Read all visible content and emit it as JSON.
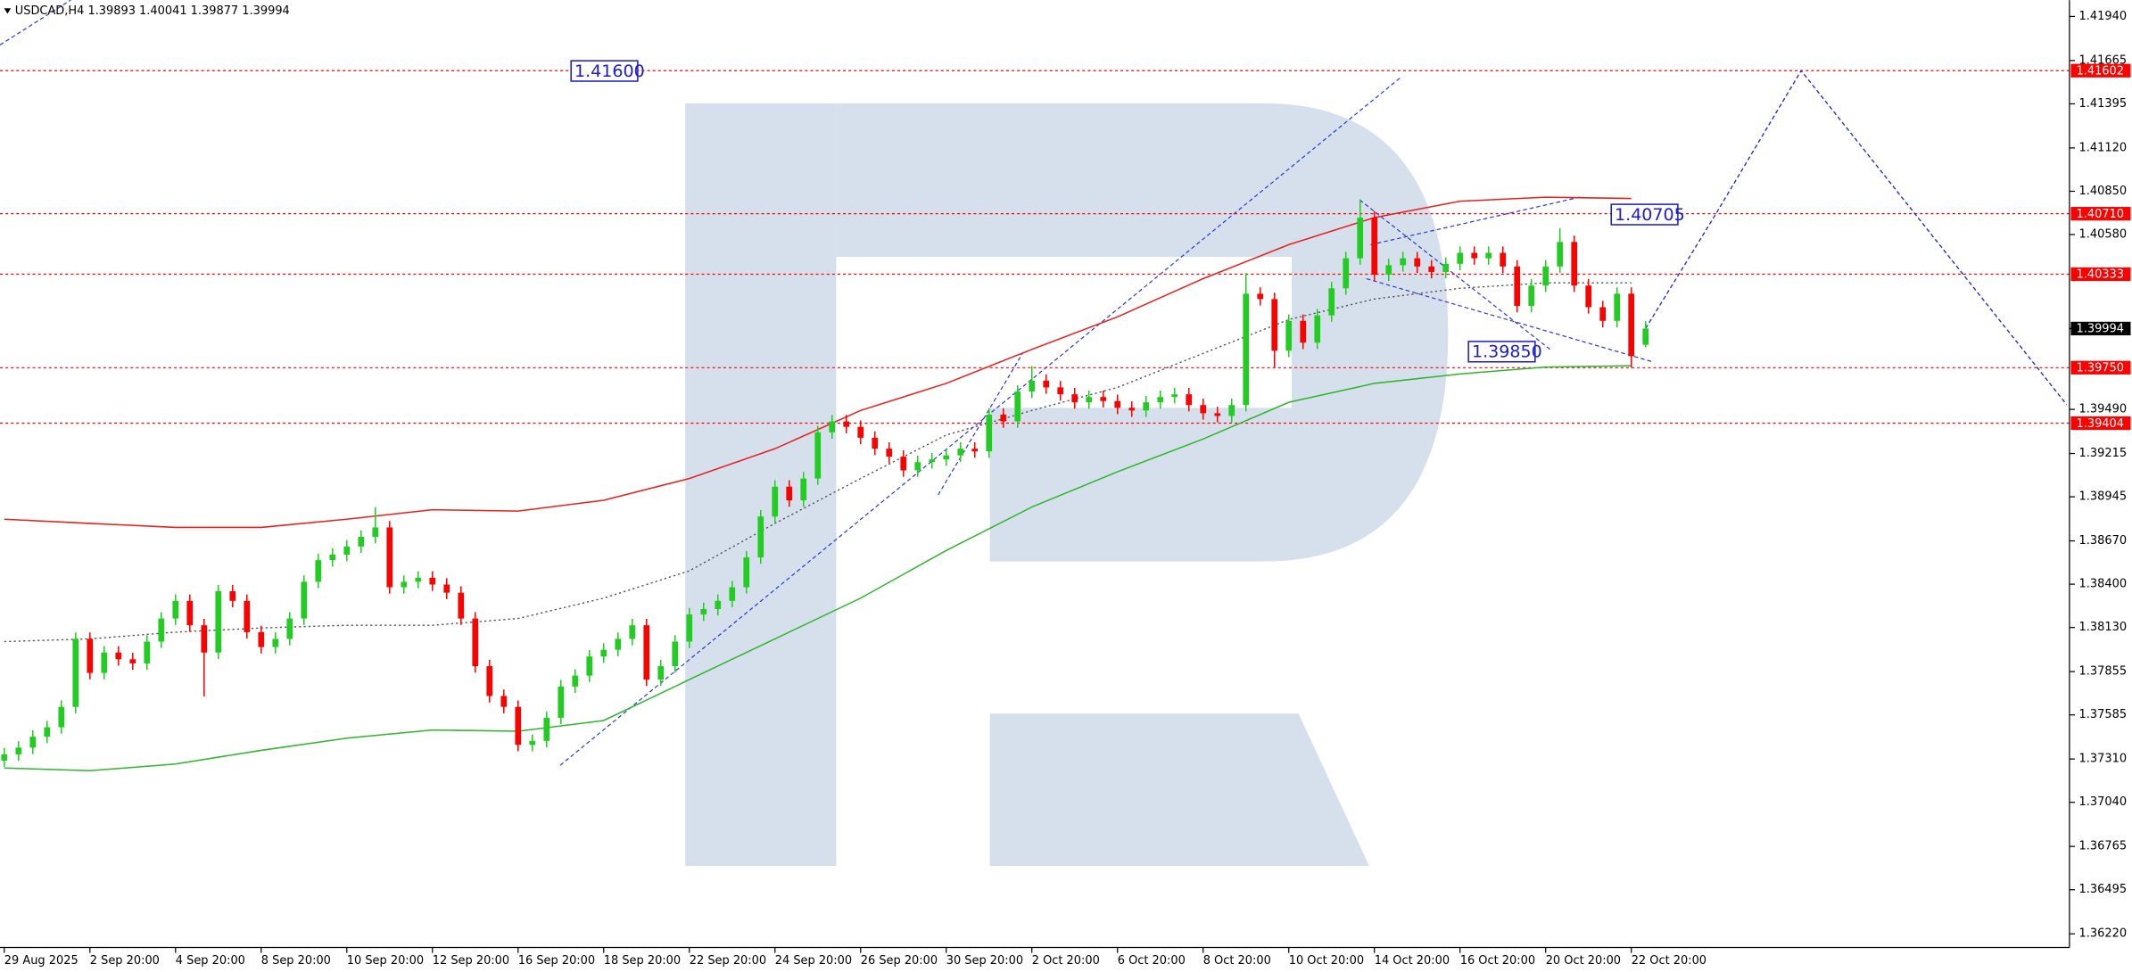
{
  "chart_data": {
    "type": "candlestick",
    "title": "USDCAD,H4  1.39893 1.40041 1.39877 1.39994",
    "up_color": "#22cc22",
    "down_color": "#ff0000",
    "grid": false,
    "xlim": [
      -0.3,
      144.7
    ],
    "ylim": [
      1.36135,
      1.42042
    ],
    "yticks": [
      {
        "value": 1.4194,
        "label": "1.41940"
      },
      {
        "value": 1.41665,
        "label": "1.41665"
      },
      {
        "value": 1.41395,
        "label": "1.41395"
      },
      {
        "value": 1.4112,
        "label": "1.41120"
      },
      {
        "value": 1.4085,
        "label": "1.40850"
      },
      {
        "value": 1.4058,
        "label": "1.40580"
      },
      {
        "value": 1.3949,
        "label": "1.39490"
      },
      {
        "value": 1.39215,
        "label": "1.39215"
      },
      {
        "value": 1.38945,
        "label": "1.38945"
      },
      {
        "value": 1.3867,
        "label": "1.38670"
      },
      {
        "value": 1.384,
        "label": "1.38400"
      },
      {
        "value": 1.3813,
        "label": "1.38130"
      },
      {
        "value": 1.37855,
        "label": "1.37855"
      },
      {
        "value": 1.37585,
        "label": "1.37585"
      },
      {
        "value": 1.3731,
        "label": "1.37310"
      },
      {
        "value": 1.3704,
        "label": "1.37040"
      },
      {
        "value": 1.36765,
        "label": "1.36765"
      },
      {
        "value": 1.36495,
        "label": "1.36495"
      },
      {
        "value": 1.3622,
        "label": "1.36220"
      }
    ],
    "categories": [
      "29 Aug 2025",
      null,
      null,
      null,
      null,
      null,
      "2 Sep 20:00",
      null,
      null,
      null,
      null,
      null,
      "4 Sep 20:00",
      null,
      null,
      null,
      null,
      null,
      "8 Sep 20:00",
      null,
      null,
      null,
      null,
      null,
      "10 Sep 20:00",
      null,
      null,
      null,
      null,
      null,
      "12 Sep 20:00",
      null,
      null,
      null,
      null,
      null,
      "16 Sep 20:00",
      null,
      null,
      null,
      null,
      null,
      "18 Sep 20:00",
      null,
      null,
      null,
      null,
      null,
      "22 Sep 20:00",
      null,
      null,
      null,
      null,
      null,
      "24 Sep 20:00",
      null,
      null,
      null,
      null,
      null,
      "26 Sep 20:00",
      null,
      null,
      null,
      null,
      null,
      "30 Sep 20:00",
      null,
      null,
      null,
      null,
      null,
      "2 Oct 20:00",
      null,
      null,
      null,
      null,
      null,
      "6 Oct 20:00",
      null,
      null,
      null,
      null,
      null,
      "8 Oct 20:00",
      null,
      null,
      null,
      null,
      null,
      "10 Oct 20:00",
      null,
      null,
      null,
      null,
      null,
      "14 Oct 20:00",
      null,
      null,
      null,
      null,
      null,
      "16 Oct 20:00",
      null,
      null,
      null,
      null,
      null,
      "20 Oct 20:00",
      null,
      null,
      null,
      null,
      null,
      "22 Oct 20:00",
      null
    ],
    "candles": [
      [
        1.373,
        1.37379,
        1.3726,
        1.37339
      ],
      [
        1.37339,
        1.37421,
        1.37299,
        1.37381
      ],
      [
        1.37381,
        1.37489,
        1.37341,
        1.37449
      ],
      [
        1.37449,
        1.37548,
        1.37409,
        1.37508
      ],
      [
        1.37508,
        1.37675,
        1.37468,
        1.37635
      ],
      [
        1.37635,
        1.38099,
        1.37595,
        1.38059
      ],
      [
        1.38059,
        1.38099,
        1.37807,
        1.37847
      ],
      [
        1.37847,
        1.38014,
        1.37807,
        1.37974
      ],
      [
        1.37974,
        1.38014,
        1.37892,
        1.37932
      ],
      [
        1.37932,
        1.37972,
        1.37866,
        1.37906
      ],
      [
        1.37906,
        1.38082,
        1.37866,
        1.38042
      ],
      [
        1.38042,
        1.38226,
        1.38002,
        1.38186
      ],
      [
        1.38186,
        1.38336,
        1.38146,
        1.38296
      ],
      [
        1.38296,
        1.38336,
        1.38104,
        1.38144
      ],
      [
        1.38144,
        1.38184,
        1.377,
        1.37974
      ],
      [
        1.37974,
        1.38396,
        1.37934,
        1.38356
      ],
      [
        1.38356,
        1.38396,
        1.38256,
        1.38296
      ],
      [
        1.38296,
        1.38336,
        1.38061,
        1.38101
      ],
      [
        1.38101,
        1.38141,
        1.37968,
        1.38008
      ],
      [
        1.38008,
        1.38099,
        1.37968,
        1.38059
      ],
      [
        1.38059,
        1.38226,
        1.38019,
        1.38186
      ],
      [
        1.38186,
        1.38455,
        1.38146,
        1.38415
      ],
      [
        1.38415,
        1.3859,
        1.38375,
        1.3855
      ],
      [
        1.3855,
        1.38624,
        1.3851,
        1.38584
      ],
      [
        1.38584,
        1.38675,
        1.38544,
        1.38635
      ],
      [
        1.38635,
        1.38735,
        1.38595,
        1.38695
      ],
      [
        1.38695,
        1.3888,
        1.38655,
        1.38754
      ],
      [
        1.38754,
        1.38794,
        1.38341,
        1.38381
      ],
      [
        1.38381,
        1.38455,
        1.38341,
        1.38415
      ],
      [
        1.38415,
        1.3848,
        1.38375,
        1.3844
      ],
      [
        1.3844,
        1.3848,
        1.38358,
        1.38398
      ],
      [
        1.38398,
        1.38438,
        1.38307,
        1.38347
      ],
      [
        1.38347,
        1.38387,
        1.38146,
        1.38186
      ],
      [
        1.38186,
        1.38226,
        1.37849,
        1.37889
      ],
      [
        1.37889,
        1.37929,
        1.37663,
        1.37703
      ],
      [
        1.37703,
        1.37743,
        1.37595,
        1.37635
      ],
      [
        1.37635,
        1.37675,
        1.37358,
        1.37398
      ],
      [
        1.37398,
        1.37463,
        1.37358,
        1.37423
      ],
      [
        1.37423,
        1.37607,
        1.37383,
        1.37567
      ],
      [
        1.37567,
        1.37802,
        1.37527,
        1.37762
      ],
      [
        1.37762,
        1.3787,
        1.37722,
        1.3783
      ],
      [
        1.3783,
        1.37989,
        1.3779,
        1.37949
      ],
      [
        1.37949,
        1.38031,
        1.37909,
        1.37991
      ],
      [
        1.37991,
        1.38099,
        1.37951,
        1.38059
      ],
      [
        1.38059,
        1.38184,
        1.38019,
        1.38144
      ],
      [
        1.38144,
        1.38184,
        1.37765,
        1.37805
      ],
      [
        1.37805,
        1.37929,
        1.37765,
        1.37889
      ],
      [
        1.37889,
        1.38082,
        1.37849,
        1.38042
      ],
      [
        1.38042,
        1.38251,
        1.38002,
        1.38211
      ],
      [
        1.38211,
        1.38285,
        1.38171,
        1.38245
      ],
      [
        1.38245,
        1.38336,
        1.38205,
        1.38296
      ],
      [
        1.38296,
        1.38421,
        1.38256,
        1.38381
      ],
      [
        1.38381,
        1.38607,
        1.38341,
        1.38567
      ],
      [
        1.38567,
        1.38862,
        1.38527,
        1.38822
      ],
      [
        1.38822,
        1.39048,
        1.38782,
        1.39008
      ],
      [
        1.39008,
        1.39048,
        1.38883,
        1.38923
      ],
      [
        1.38923,
        1.39099,
        1.38883,
        1.39059
      ],
      [
        1.39059,
        1.39387,
        1.39019,
        1.39347
      ],
      [
        1.39347,
        1.39455,
        1.39307,
        1.39415
      ],
      [
        1.39415,
        1.39455,
        1.39341,
        1.39381
      ],
      [
        1.39381,
        1.39421,
        1.39273,
        1.39313
      ],
      [
        1.39313,
        1.39353,
        1.39205,
        1.39245
      ],
      [
        1.39245,
        1.39285,
        1.39155,
        1.39195
      ],
      [
        1.39195,
        1.39235,
        1.3907,
        1.3911
      ],
      [
        1.3911,
        1.39201,
        1.3907,
        1.39161
      ],
      [
        1.39161,
        1.39218,
        1.39121,
        1.39178
      ],
      [
        1.39178,
        1.39243,
        1.39138,
        1.39203
      ],
      [
        1.39203,
        1.39285,
        1.39163,
        1.39245
      ],
      [
        1.39245,
        1.39285,
        1.39188,
        1.39228
      ],
      [
        1.39228,
        1.39497,
        1.39188,
        1.39457
      ],
      [
        1.39457,
        1.39497,
        1.39375,
        1.39415
      ],
      [
        1.39415,
        1.39641,
        1.39375,
        1.39601
      ],
      [
        1.39601,
        1.3976,
        1.39561,
        1.39669
      ],
      [
        1.39669,
        1.39709,
        1.39587,
        1.39627
      ],
      [
        1.39627,
        1.39667,
        1.39544,
        1.39584
      ],
      [
        1.39584,
        1.39624,
        1.39494,
        1.39534
      ],
      [
        1.39534,
        1.39607,
        1.39494,
        1.39567
      ],
      [
        1.39567,
        1.39607,
        1.39502,
        1.39542
      ],
      [
        1.39542,
        1.39582,
        1.3946,
        1.395
      ],
      [
        1.395,
        1.3954,
        1.39443,
        1.39483
      ],
      [
        1.39483,
        1.39574,
        1.39443,
        1.39534
      ],
      [
        1.39534,
        1.39607,
        1.39494,
        1.39567
      ],
      [
        1.39567,
        1.39624,
        1.39527,
        1.39584
      ],
      [
        1.39584,
        1.39624,
        1.39477,
        1.39517
      ],
      [
        1.39517,
        1.39557,
        1.39426,
        1.39466
      ],
      [
        1.39466,
        1.39506,
        1.39409,
        1.39449
      ],
      [
        1.39449,
        1.39557,
        1.39409,
        1.39517
      ],
      [
        1.39517,
        1.4034,
        1.39477,
        1.40211
      ],
      [
        1.40211,
        1.40251,
        1.40138,
        1.40178
      ],
      [
        1.40178,
        1.40218,
        1.3975,
        1.39856
      ],
      [
        1.39856,
        1.40082,
        1.39816,
        1.40042
      ],
      [
        1.40042,
        1.40082,
        1.39866,
        1.39906
      ],
      [
        1.39906,
        1.40116,
        1.39866,
        1.40076
      ],
      [
        1.40076,
        1.40285,
        1.40036,
        1.40245
      ],
      [
        1.40245,
        1.40472,
        1.40205,
        1.40432
      ],
      [
        1.40432,
        1.408,
        1.40392,
        1.40686
      ],
      [
        1.40686,
        1.40726,
        1.4029,
        1.4033
      ],
      [
        1.4033,
        1.40429,
        1.4029,
        1.40389
      ],
      [
        1.40389,
        1.40472,
        1.40349,
        1.40432
      ],
      [
        1.40432,
        1.40472,
        1.40341,
        1.40381
      ],
      [
        1.40381,
        1.40421,
        1.40307,
        1.40347
      ],
      [
        1.40347,
        1.40438,
        1.40307,
        1.40398
      ],
      [
        1.40398,
        1.40506,
        1.40358,
        1.40466
      ],
      [
        1.40466,
        1.40506,
        1.40392,
        1.40432
      ],
      [
        1.40432,
        1.40506,
        1.40392,
        1.40466
      ],
      [
        1.40466,
        1.40506,
        1.40341,
        1.40381
      ],
      [
        1.40381,
        1.40421,
        1.40095,
        1.40135
      ],
      [
        1.40135,
        1.40302,
        1.40095,
        1.40262
      ],
      [
        1.40262,
        1.40421,
        1.40222,
        1.40381
      ],
      [
        1.40381,
        1.4062,
        1.40341,
        1.40534
      ],
      [
        1.40534,
        1.40574,
        1.40222,
        1.40262
      ],
      [
        1.40262,
        1.40302,
        1.40087,
        1.40127
      ],
      [
        1.40127,
        1.40167,
        1.40002,
        1.40042
      ],
      [
        1.40042,
        1.40251,
        1.40002,
        1.40211
      ],
      [
        1.40211,
        1.40251,
        1.3975,
        1.39822
      ],
      [
        1.39893,
        1.40041,
        1.39877,
        1.39994
      ]
    ],
    "series": [
      {
        "color": "#e8201c",
        "style": "solid",
        "x": [
          0,
          6,
          12,
          18,
          24,
          30,
          36,
          42,
          48,
          54,
          60,
          66,
          72,
          78,
          84,
          90,
          96,
          102,
          108,
          114
        ],
        "values": [
          1.38805,
          1.38779,
          1.38754,
          1.38754,
          1.38805,
          1.38864,
          1.38856,
          1.38923,
          1.39059,
          1.39245,
          1.39483,
          1.39652,
          1.39864,
          1.40067,
          1.40305,
          1.40517,
          1.40686,
          1.40788,
          1.40813,
          1.40805
        ]
      },
      {
        "color": "#2fb52f",
        "style": "solid",
        "x": [
          0,
          6,
          12,
          18,
          24,
          30,
          36,
          42,
          48,
          54,
          60,
          66,
          72,
          78,
          84,
          90,
          96,
          102,
          108,
          114
        ],
        "values": [
          1.37254,
          1.37237,
          1.37279,
          1.37364,
          1.3744,
          1.37491,
          1.37483,
          1.3755,
          1.37805,
          1.38059,
          1.38313,
          1.3861,
          1.38881,
          1.39101,
          1.39305,
          1.39534,
          1.39652,
          1.39711,
          1.39754,
          1.39762
        ]
      },
      {
        "color": "#555555",
        "style": "dotted",
        "x": [
          0,
          6,
          12,
          18,
          24,
          30,
          36,
          42,
          48,
          54,
          60,
          66,
          72,
          78,
          84,
          90,
          96,
          102,
          108,
          114
        ],
        "values": [
          1.38042,
          1.38059,
          1.38101,
          1.38127,
          1.38144,
          1.38144,
          1.38186,
          1.38313,
          1.38483,
          1.38779,
          1.39059,
          1.3933,
          1.39483,
          1.39627,
          1.39839,
          1.4005,
          1.40178,
          1.40245,
          1.40279,
          1.40279
        ]
      },
      {
        "color": "#1c2fd6",
        "style": "dashed",
        "x": [
          115,
          119.9,
          125.9,
          144.5
        ],
        "values": [
          1.39994,
          1.40705,
          1.41602,
          1.3952
        ]
      }
    ],
    "levels": [
      {
        "value": 1.41602,
        "label": "1.41602"
      },
      {
        "value": 1.4071,
        "label": "1.40710"
      },
      {
        "value": 1.40333,
        "label": "1.40333"
      },
      {
        "value": 1.3975,
        "label": "1.39750"
      },
      {
        "value": 1.39404,
        "label": "1.39404"
      }
    ],
    "level_color": "#ff0000",
    "current_price": {
      "value": 1.39994,
      "label": "1.39994"
    },
    "annotations": [
      {
        "value": 1.416,
        "label": "1.41600"
      },
      {
        "value": 1.40705,
        "label": "1.40705"
      },
      {
        "value": 1.3985,
        "label": "1.39850"
      }
    ],
    "annotation_color": "#1c1cd0"
  }
}
